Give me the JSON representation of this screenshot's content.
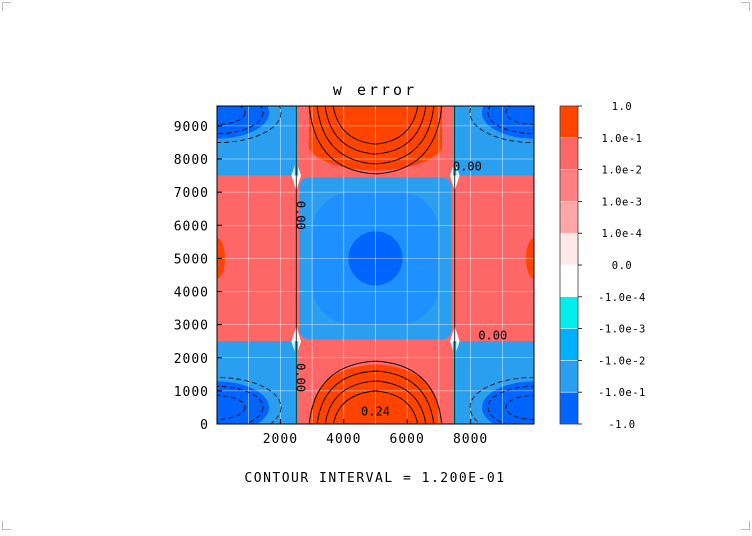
{
  "chart_data": {
    "type": "heatmap",
    "title": "w error",
    "footer": "CONTOUR INTERVAL = 1.200E-01",
    "xlim": [
      0,
      10000
    ],
    "ylim": [
      0,
      9600
    ],
    "x_ticks": [
      {
        "value": 2000,
        "label": "2000"
      },
      {
        "value": 4000,
        "label": "4000"
      },
      {
        "value": 6000,
        "label": "6000"
      },
      {
        "value": 8000,
        "label": "8000"
      }
    ],
    "y_ticks": [
      {
        "value": 0,
        "label": "0"
      },
      {
        "value": 1000,
        "label": "1000"
      },
      {
        "value": 2000,
        "label": "2000"
      },
      {
        "value": 3000,
        "label": "3000"
      },
      {
        "value": 4000,
        "label": "4000"
      },
      {
        "value": 5000,
        "label": "5000"
      },
      {
        "value": 6000,
        "label": "6000"
      },
      {
        "value": 7000,
        "label": "7000"
      },
      {
        "value": 8000,
        "label": "8000"
      },
      {
        "value": 9000,
        "label": "9000"
      }
    ],
    "grid": true,
    "cell_boundaries_x": [
      2500,
      7500
    ],
    "cell_boundaries_y": [
      2500,
      7500
    ],
    "colorbar": {
      "labels": [
        "1.0",
        "1.0e-1",
        "1.0e-2",
        "1.0e-3",
        "1.0e-4",
        "0.0",
        "-1.0e-4",
        "-1.0e-3",
        "-1.0e-2",
        "-1.0e-1",
        "-1.0"
      ],
      "colors": [
        "#ff4400",
        "#ff6666",
        "#ff8080",
        "#ffa6a6",
        "#ffe8e8",
        "#ffffff",
        "#00eeee",
        "#00b0ff",
        "#2a9ff0",
        "#0064ff"
      ]
    },
    "colors": {
      "pos1": "#ff4400",
      "pos2": "#ff6666",
      "pos3": "#ff8080",
      "neg2": "#2a9ff0",
      "neg3": "#1e90ff",
      "neg1": "#0064ff",
      "neg4": "#00b0ff"
    },
    "contour_labels": [
      {
        "text": "0.00",
        "x": 7900,
        "y": 7650
      },
      {
        "text": "0.00",
        "x": 8700,
        "y": 2550
      },
      {
        "text": "0.00",
        "x": 2500,
        "y": 6300,
        "rotate": 90
      },
      {
        "text": "0.00",
        "x": 2500,
        "y": 1400,
        "rotate": 90
      },
      {
        "text": "0.24",
        "x": 5000,
        "y": 250
      }
    ]
  }
}
